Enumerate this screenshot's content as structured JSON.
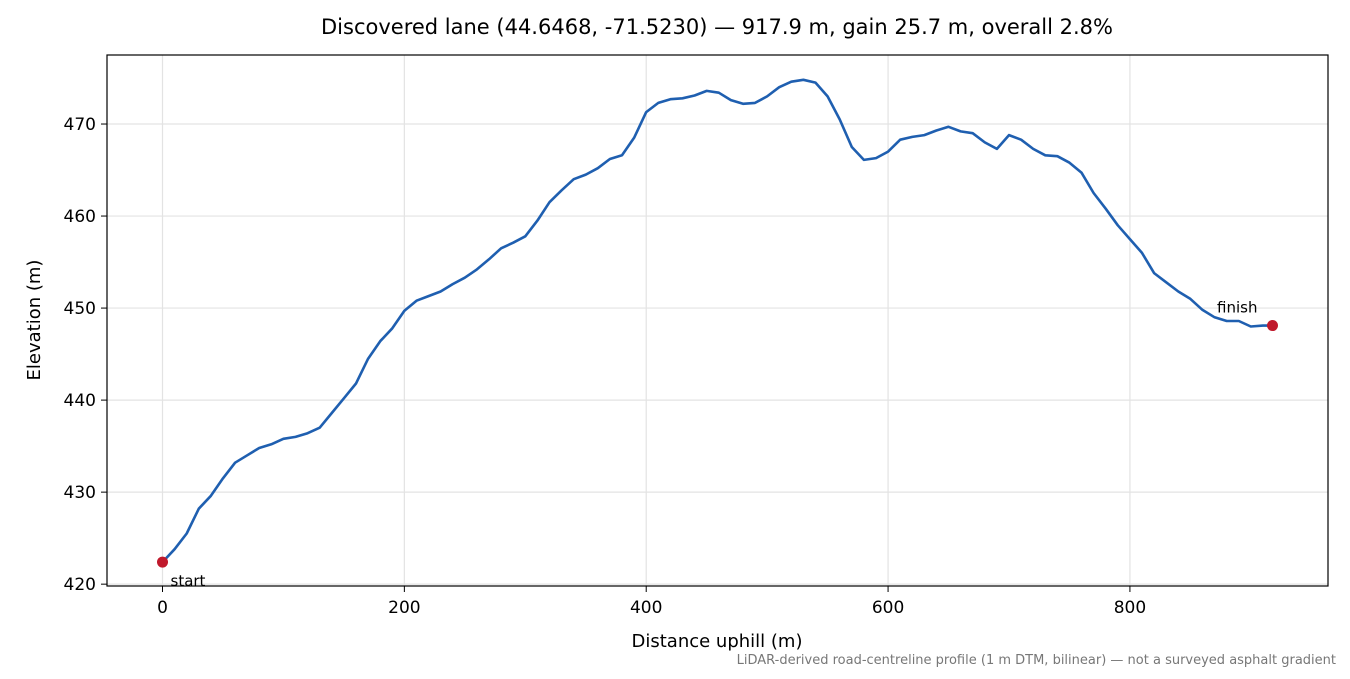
{
  "chart_data": {
    "type": "line",
    "title": "Discovered lane (44.6468, -71.5230) — 917.9 m, gain 25.7 m, overall 2.8%",
    "x_label": "Distance uphill (m)",
    "y_label": "Elevation (m)",
    "footnote": "LiDAR-derived road-centreline profile (1 m DTM, bilinear) — not a surveyed asphalt gradient",
    "annotations": [
      "start",
      "finish"
    ],
    "endpoint_color": "#c0192c",
    "x": [
      0,
      10,
      20,
      30,
      40,
      50,
      60,
      70,
      80,
      90,
      100,
      110,
      120,
      130,
      140,
      150,
      160,
      170,
      180,
      190,
      200,
      210,
      220,
      230,
      240,
      250,
      260,
      270,
      280,
      290,
      300,
      310,
      320,
      330,
      340,
      350,
      360,
      370,
      380,
      390,
      400,
      410,
      420,
      430,
      440,
      450,
      460,
      470,
      480,
      490,
      500,
      510,
      520,
      530,
      540,
      550,
      560,
      570,
      580,
      590,
      600,
      610,
      620,
      630,
      640,
      650,
      660,
      670,
      680,
      690,
      700,
      710,
      720,
      730,
      740,
      750,
      760,
      770,
      780,
      790,
      800,
      810,
      820,
      830,
      840,
      850,
      860,
      870,
      880,
      890,
      900,
      910,
      917.9
    ],
    "series": [
      {
        "name": "Elevation",
        "color": "#1f5fb0",
        "values": [
          422.4,
          423.8,
          425.5,
          428.2,
          429.6,
          431.5,
          433.2,
          434.0,
          434.8,
          435.2,
          435.8,
          436.0,
          436.4,
          437.0,
          438.6,
          440.2,
          441.8,
          444.5,
          446.4,
          447.8,
          449.7,
          450.8,
          451.3,
          451.8,
          452.6,
          453.3,
          454.2,
          455.3,
          456.5,
          457.1,
          457.8,
          459.5,
          461.5,
          462.8,
          464.0,
          464.5,
          465.2,
          466.2,
          466.6,
          468.5,
          471.3,
          472.3,
          472.7,
          472.8,
          473.1,
          473.6,
          473.4,
          472.6,
          472.2,
          472.3,
          473.0,
          474.0,
          474.6,
          474.8,
          474.5,
          473.0,
          470.5,
          467.5,
          466.1,
          466.3,
          467.0,
          468.3,
          468.6,
          468.8,
          469.3,
          469.7,
          469.2,
          469.0,
          468.0,
          467.3,
          468.8,
          468.3,
          467.3,
          466.6,
          466.5,
          465.8,
          464.7,
          462.5,
          460.8,
          459.0,
          457.5,
          456.0,
          453.8,
          452.8,
          451.8,
          451.0,
          449.8,
          449.0,
          448.6,
          448.6,
          448.0,
          448.1,
          448.1
        ]
      }
    ],
    "xlim": [
      -45.9,
      963.8
    ],
    "ylim": [
      419.8,
      477.5
    ],
    "xticks": [
      0,
      200,
      400,
      600,
      800
    ],
    "yticks": [
      420,
      430,
      440,
      450,
      460,
      470
    ],
    "grid": true
  }
}
